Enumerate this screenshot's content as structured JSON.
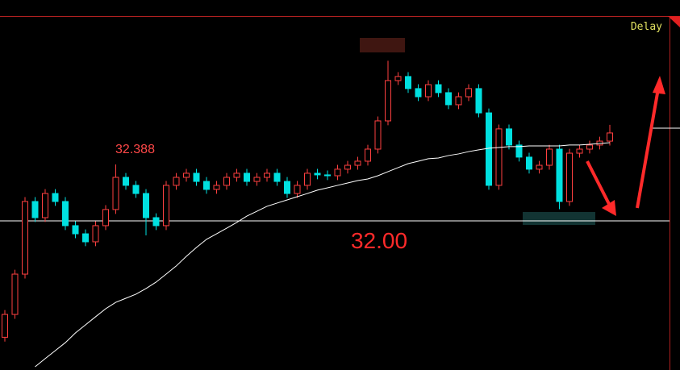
{
  "chart_data": {
    "type": "candlestick",
    "status": "Delay",
    "open": [
      31.2,
      31.357,
      31.634,
      32.133,
      32.022,
      32.188,
      32.133,
      31.967,
      31.911,
      31.856,
      31.967,
      32.078,
      32.299,
      32.244,
      32.188,
      32.022,
      31.967,
      32.244,
      32.299,
      32.327,
      32.271,
      32.216,
      32.244,
      32.299,
      32.327,
      32.271,
      32.299,
      32.327,
      32.271,
      32.188,
      32.244,
      32.327,
      32.316,
      32.31,
      32.355,
      32.382,
      32.41,
      32.493,
      32.687,
      32.964,
      32.992,
      32.909,
      32.853,
      32.936,
      32.881,
      32.798,
      32.853,
      32.909,
      32.742,
      32.244,
      32.632,
      32.521,
      32.438,
      32.355,
      32.382,
      32.493,
      32.133,
      32.465,
      32.493,
      32.521,
      32.548
    ],
    "high": [
      31.387,
      31.664,
      32.163,
      32.163,
      32.218,
      32.218,
      32.163,
      31.997,
      31.941,
      31.997,
      32.108,
      32.388,
      32.329,
      32.274,
      32.218,
      32.052,
      32.274,
      32.329,
      32.357,
      32.357,
      32.301,
      32.274,
      32.329,
      32.357,
      32.357,
      32.329,
      32.357,
      32.357,
      32.301,
      32.274,
      32.357,
      32.357,
      32.346,
      32.385,
      32.412,
      32.44,
      32.523,
      32.717,
      33.1,
      33.022,
      33.022,
      32.939,
      32.966,
      32.966,
      32.911,
      32.883,
      32.939,
      32.939,
      32.772,
      32.662,
      32.662,
      32.551,
      32.468,
      32.412,
      32.523,
      32.523,
      32.495,
      32.523,
      32.551,
      32.578,
      32.66
    ],
    "low": [
      31.17,
      31.327,
      31.604,
      31.992,
      31.992,
      32.103,
      31.937,
      31.881,
      31.826,
      31.826,
      31.937,
      32.048,
      32.214,
      32.158,
      31.9,
      31.937,
      31.937,
      32.214,
      32.269,
      32.241,
      32.186,
      32.186,
      32.214,
      32.269,
      32.241,
      32.241,
      32.269,
      32.241,
      32.158,
      32.158,
      32.214,
      32.286,
      32.28,
      32.28,
      32.325,
      32.352,
      32.38,
      32.463,
      32.657,
      32.934,
      32.879,
      32.823,
      32.823,
      32.851,
      32.768,
      32.768,
      32.823,
      32.712,
      32.214,
      32.214,
      32.491,
      32.408,
      32.325,
      32.325,
      32.352,
      32.08,
      32.103,
      32.435,
      32.463,
      32.491,
      32.518
    ],
    "close": [
      31.357,
      31.634,
      32.133,
      32.022,
      32.188,
      32.133,
      31.967,
      31.911,
      31.856,
      31.967,
      32.078,
      32.299,
      32.244,
      32.188,
      32.022,
      31.967,
      32.244,
      32.299,
      32.327,
      32.271,
      32.216,
      32.244,
      32.299,
      32.327,
      32.271,
      32.299,
      32.327,
      32.271,
      32.188,
      32.244,
      32.327,
      32.316,
      32.31,
      32.355,
      32.382,
      32.41,
      32.493,
      32.687,
      32.964,
      32.992,
      32.909,
      32.853,
      32.936,
      32.881,
      32.798,
      32.853,
      32.909,
      32.742,
      32.244,
      32.632,
      32.521,
      32.438,
      32.355,
      32.382,
      32.493,
      32.133,
      32.465,
      32.493,
      32.521,
      32.548,
      32.604
    ],
    "ma": [
      null,
      null,
      null,
      30.997,
      31.053,
      31.108,
      31.163,
      31.23,
      31.285,
      31.341,
      31.396,
      31.44,
      31.468,
      31.496,
      31.535,
      31.579,
      31.634,
      31.69,
      31.756,
      31.817,
      31.873,
      31.911,
      31.95,
      31.989,
      32.033,
      32.066,
      32.1,
      32.122,
      32.144,
      32.166,
      32.188,
      32.211,
      32.227,
      32.244,
      32.26,
      32.277,
      32.288,
      32.31,
      32.338,
      32.366,
      32.393,
      32.41,
      32.427,
      32.432,
      32.449,
      32.46,
      32.476,
      32.488,
      32.499,
      32.504,
      32.51,
      32.51,
      32.515,
      32.515,
      32.515,
      32.515,
      32.521,
      32.521,
      32.526,
      32.532,
      32.537
    ],
    "up_color": "#ff4040",
    "down_color": "#00e0e0",
    "ma_color": "#ffffff",
    "ylim": [
      30.975,
      33.407
    ],
    "high_annotation": 32.388,
    "reference_line": {
      "value": 32,
      "label": "32.00"
    }
  }
}
